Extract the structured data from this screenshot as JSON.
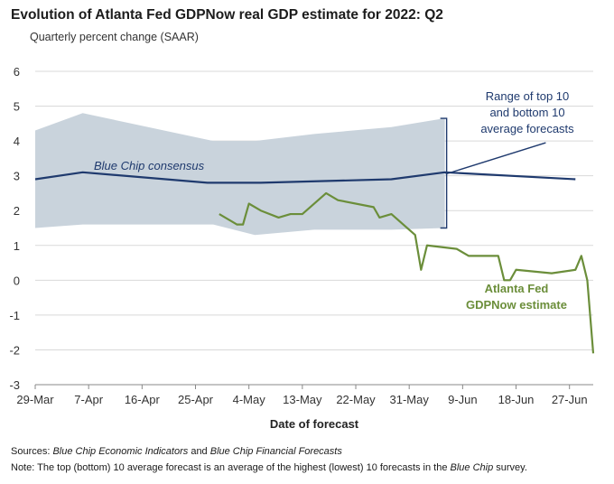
{
  "footer": {
    "sources_prefix": "Sources: ",
    "sources_italic1": "Blue Chip Economic Indicators",
    "sources_mid": " and ",
    "sources_italic2": "Blue Chip Financial Forecasts",
    "note_prefix": "Note: ",
    "note_text": "The top (bottom) 10 average forecast is an average of the highest (lowest) 10 forecasts in the ",
    "note_italic": "Blue Chip",
    "note_suffix": " survey."
  },
  "chart_data": {
    "type": "line",
    "title": "Evolution of Atlanta Fed GDPNow real GDP estimate for 2022: Q2",
    "subtitle": "Quarterly percent change (SAAR)",
    "xlabel": "Date of forecast",
    "ylabel": "",
    "ylim": [
      -3,
      6
    ],
    "y_ticks": [
      6,
      5,
      4,
      3,
      2,
      1,
      0,
      -1,
      -2,
      -3
    ],
    "y_tick_labels": [
      "6",
      "5",
      "4",
      "3",
      "2",
      "1",
      "0",
      "-1",
      "-2",
      "-3"
    ],
    "xlim": [
      "2022-03-29",
      "2022-07-01"
    ],
    "x_ticks": [
      {
        "date": "2022-03-29",
        "label": "29-Mar"
      },
      {
        "date": "2022-04-07",
        "label": "7-Apr"
      },
      {
        "date": "2022-04-16",
        "label": "16-Apr"
      },
      {
        "date": "2022-04-25",
        "label": "25-Apr"
      },
      {
        "date": "2022-05-04",
        "label": "4-May"
      },
      {
        "date": "2022-05-13",
        "label": "13-May"
      },
      {
        "date": "2022-05-22",
        "label": "22-May"
      },
      {
        "date": "2022-05-31",
        "label": "31-May"
      },
      {
        "date": "2022-06-09",
        "label": "9-Jun"
      },
      {
        "date": "2022-06-18",
        "label": "18-Jun"
      },
      {
        "date": "2022-06-27",
        "label": "27-Jun"
      }
    ],
    "grid": "horizontal",
    "colors": {
      "range_fill": "#c9d3dc",
      "blue_chip": "#1f3a6e",
      "gdpnow": "#6b8e3a",
      "grid": "#d9d9d9",
      "axis": "#888888"
    },
    "range_band": {
      "annotation_lines": [
        "Range of top 10",
        "and bottom 10",
        "average forecasts"
      ],
      "top": [
        {
          "x": "2022-03-29",
          "y": 4.3
        },
        {
          "x": "2022-04-06",
          "y": 4.8
        },
        {
          "x": "2022-04-28",
          "y": 4.0
        },
        {
          "x": "2022-05-05",
          "y": 4.0
        },
        {
          "x": "2022-05-15",
          "y": 4.2
        },
        {
          "x": "2022-05-28",
          "y": 4.4
        },
        {
          "x": "2022-06-06",
          "y": 4.65
        }
      ],
      "bottom": [
        {
          "x": "2022-03-29",
          "y": 1.5
        },
        {
          "x": "2022-04-06",
          "y": 1.6
        },
        {
          "x": "2022-04-28",
          "y": 1.6
        },
        {
          "x": "2022-05-05",
          "y": 1.3
        },
        {
          "x": "2022-05-15",
          "y": 1.45
        },
        {
          "x": "2022-05-28",
          "y": 1.45
        },
        {
          "x": "2022-06-06",
          "y": 1.5
        }
      ]
    },
    "series": [
      {
        "name": "Blue Chip consensus",
        "points": [
          {
            "x": "2022-03-29",
            "y": 2.9
          },
          {
            "x": "2022-04-06",
            "y": 3.1
          },
          {
            "x": "2022-04-27",
            "y": 2.8
          },
          {
            "x": "2022-05-06",
            "y": 2.8
          },
          {
            "x": "2022-05-28",
            "y": 2.9
          },
          {
            "x": "2022-06-06",
            "y": 3.1
          },
          {
            "x": "2022-06-28",
            "y": 2.9
          }
        ]
      },
      {
        "name": "Atlanta Fed GDPNow estimate",
        "label_lines": [
          "Atlanta Fed",
          "GDPNow estimate"
        ],
        "points": [
          {
            "x": "2022-04-29",
            "y": 1.9
          },
          {
            "x": "2022-05-02",
            "y": 1.6
          },
          {
            "x": "2022-05-03",
            "y": 1.6
          },
          {
            "x": "2022-05-04",
            "y": 2.2
          },
          {
            "x": "2022-05-06",
            "y": 2.0
          },
          {
            "x": "2022-05-09",
            "y": 1.8
          },
          {
            "x": "2022-05-11",
            "y": 1.9
          },
          {
            "x": "2022-05-13",
            "y": 1.9
          },
          {
            "x": "2022-05-17",
            "y": 2.5
          },
          {
            "x": "2022-05-19",
            "y": 2.3
          },
          {
            "x": "2022-05-25",
            "y": 2.1
          },
          {
            "x": "2022-05-26",
            "y": 1.8
          },
          {
            "x": "2022-05-28",
            "y": 1.9
          },
          {
            "x": "2022-06-01",
            "y": 1.3
          },
          {
            "x": "2022-06-02",
            "y": 0.3
          },
          {
            "x": "2022-06-03",
            "y": 1.0
          },
          {
            "x": "2022-06-08",
            "y": 0.9
          },
          {
            "x": "2022-06-10",
            "y": 0.7
          },
          {
            "x": "2022-06-15",
            "y": 0.7
          },
          {
            "x": "2022-06-16",
            "y": 0.0
          },
          {
            "x": "2022-06-17",
            "y": 0.0
          },
          {
            "x": "2022-06-18",
            "y": 0.3
          },
          {
            "x": "2022-06-24",
            "y": 0.2
          },
          {
            "x": "2022-06-28",
            "y": 0.3
          },
          {
            "x": "2022-06-29",
            "y": 0.7
          },
          {
            "x": "2022-06-30",
            "y": 0.0
          },
          {
            "x": "2022-07-01",
            "y": -2.1
          }
        ]
      }
    ]
  }
}
